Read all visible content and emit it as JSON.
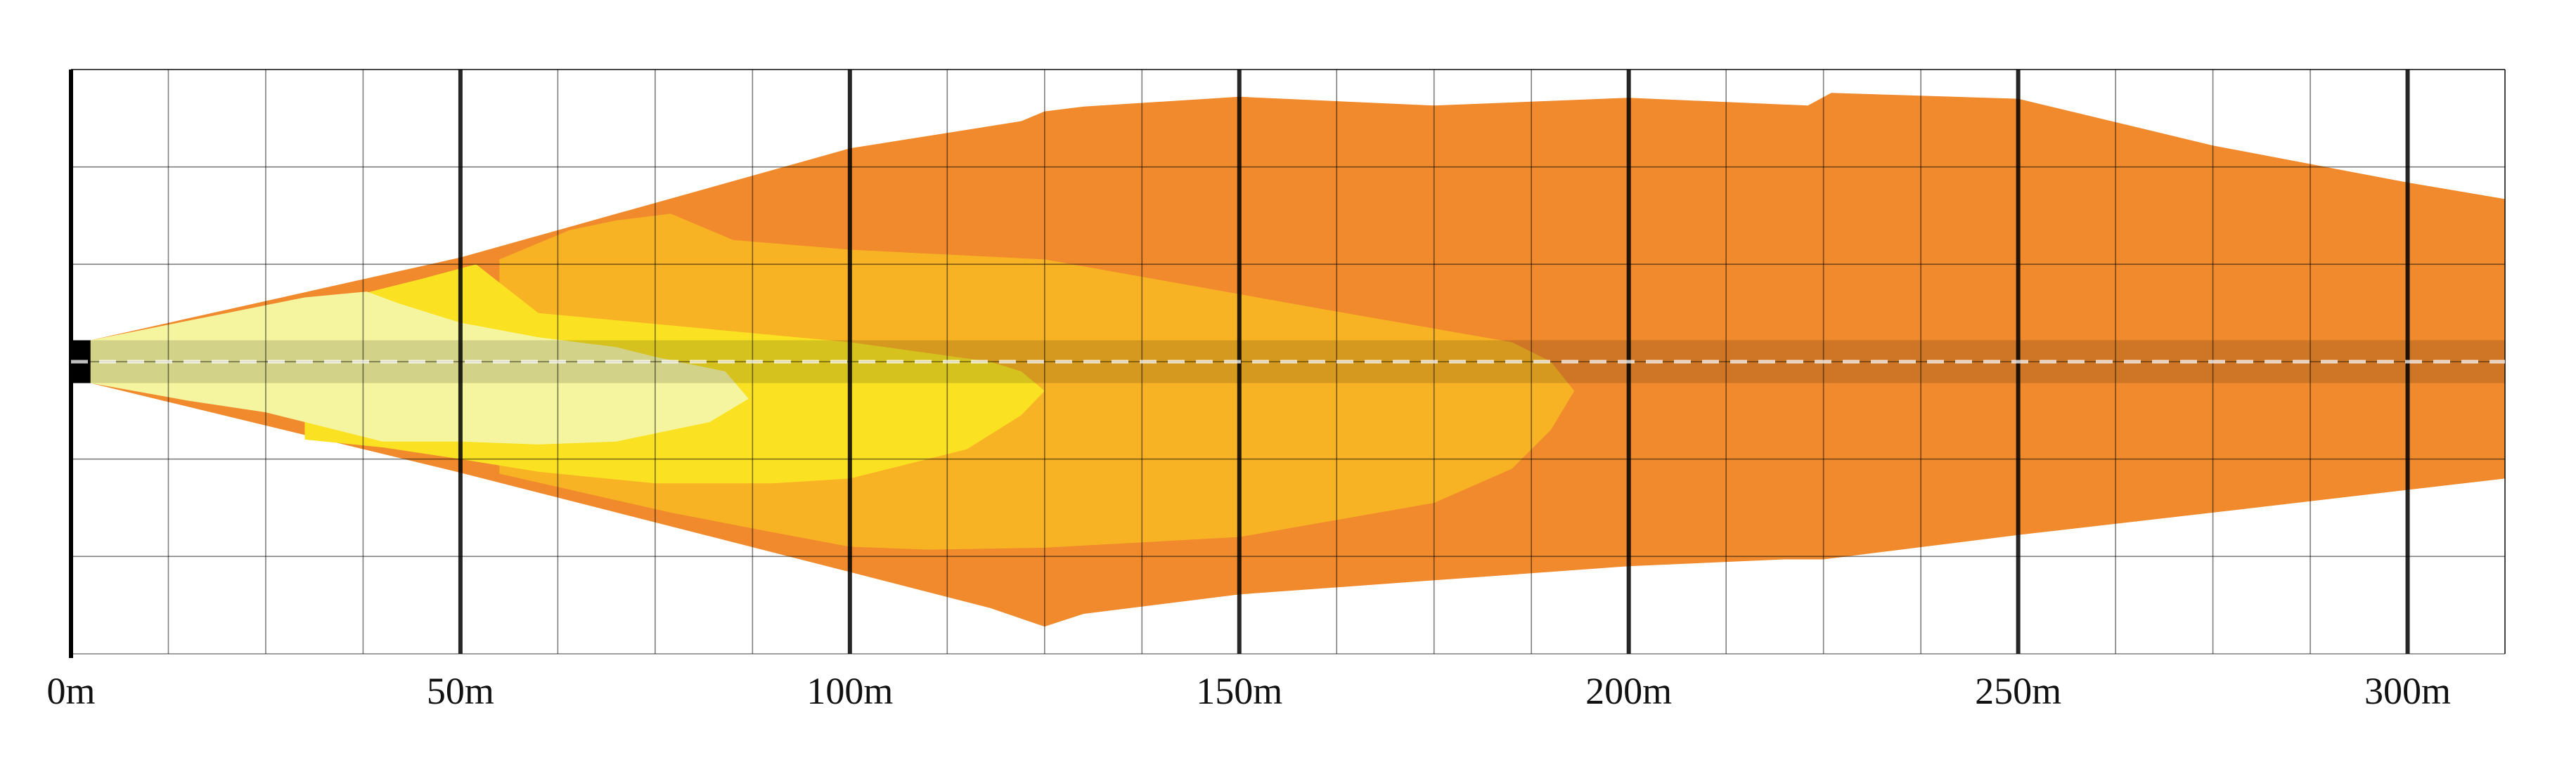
{
  "chart_data": {
    "type": "area",
    "title": "",
    "xlabel": "",
    "ylabel": "",
    "x_unit": "m",
    "xlim": [
      0,
      312.5
    ],
    "ylim": [
      -3,
      3
    ],
    "x_ticks": [
      {
        "value": 0,
        "label": "0m"
      },
      {
        "value": 50,
        "label": "50m"
      },
      {
        "value": 100,
        "label": "100m"
      },
      {
        "value": 150,
        "label": "150m"
      },
      {
        "value": 200,
        "label": "200m"
      },
      {
        "value": 250,
        "label": "250m"
      },
      {
        "value": 300,
        "label": "300m"
      }
    ],
    "minor_grid_step": 12.5,
    "grid": true,
    "center_line": true,
    "series": [
      {
        "color": "#F08A2C",
        "points": [
          [
            2.5,
            -0.22
          ],
          [
            50,
            -1.14
          ],
          [
            100,
            -2.16
          ],
          [
            118,
            -2.53
          ],
          [
            123.5,
            -2.68
          ],
          [
            125,
            -2.72
          ],
          [
            130,
            -2.59
          ],
          [
            150,
            -2.39
          ],
          [
            200,
            -2.1
          ],
          [
            220,
            -2.03
          ],
          [
            225,
            -2.03
          ],
          [
            250,
            -1.78
          ],
          [
            275,
            -1.55
          ],
          [
            312.5,
            -1.2
          ],
          [
            312.5,
            1.67
          ],
          [
            300,
            1.84
          ],
          [
            275,
            2.22
          ],
          [
            250,
            2.7
          ],
          [
            226,
            2.76
          ],
          [
            223,
            2.63
          ],
          [
            200,
            2.71
          ],
          [
            175,
            2.63
          ],
          [
            150,
            2.72
          ],
          [
            130,
            2.62
          ],
          [
            125,
            2.57
          ],
          [
            122,
            2.47
          ],
          [
            100,
            2.19
          ],
          [
            50,
            1.07
          ],
          [
            2.5,
            0.22
          ]
        ]
      },
      {
        "color": "#F8B325",
        "points": [
          [
            55,
            -1.15
          ],
          [
            77,
            -1.55
          ],
          [
            90,
            -1.75
          ],
          [
            100,
            -1.9
          ],
          [
            110,
            -1.93
          ],
          [
            125,
            -1.91
          ],
          [
            150,
            -1.8
          ],
          [
            175,
            -1.45
          ],
          [
            185,
            -1.1
          ],
          [
            190,
            -0.7
          ],
          [
            193,
            -0.3
          ],
          [
            190,
            0.0
          ],
          [
            185,
            0.2
          ],
          [
            160,
            0.55
          ],
          [
            125,
            1.05
          ],
          [
            100,
            1.15
          ],
          [
            85,
            1.25
          ],
          [
            77,
            1.52
          ],
          [
            70,
            1.45
          ],
          [
            64,
            1.35
          ],
          [
            55,
            1.05
          ]
        ]
      },
      {
        "color": "#FAE223",
        "points": [
          [
            30,
            -0.8
          ],
          [
            40,
            -0.88
          ],
          [
            50,
            -1.0
          ],
          [
            60,
            -1.13
          ],
          [
            75,
            -1.25
          ],
          [
            90,
            -1.25
          ],
          [
            100,
            -1.2
          ],
          [
            115,
            -0.9
          ],
          [
            122,
            -0.55
          ],
          [
            125,
            -0.3
          ],
          [
            122,
            -0.1
          ],
          [
            118,
            0.0
          ],
          [
            100,
            0.2
          ],
          [
            80,
            0.35
          ],
          [
            60,
            0.5
          ],
          [
            52,
            1.0
          ],
          [
            45,
            0.85
          ],
          [
            35,
            0.65
          ],
          [
            30,
            0.55
          ]
        ]
      },
      {
        "color": "#F5F5A0",
        "points": [
          [
            2.5,
            -0.22
          ],
          [
            15,
            -0.4
          ],
          [
            25,
            -0.52
          ],
          [
            40,
            -0.82
          ],
          [
            50,
            -0.82
          ],
          [
            60,
            -0.85
          ],
          [
            70,
            -0.82
          ],
          [
            82,
            -0.62
          ],
          [
            87,
            -0.38
          ],
          [
            84,
            -0.1
          ],
          [
            75,
            0.05
          ],
          [
            70,
            0.15
          ],
          [
            60,
            0.25
          ],
          [
            50,
            0.4
          ],
          [
            42,
            0.6
          ],
          [
            38,
            0.72
          ],
          [
            30,
            0.66
          ],
          [
            20,
            0.5
          ],
          [
            2.5,
            0.22
          ]
        ]
      }
    ]
  }
}
